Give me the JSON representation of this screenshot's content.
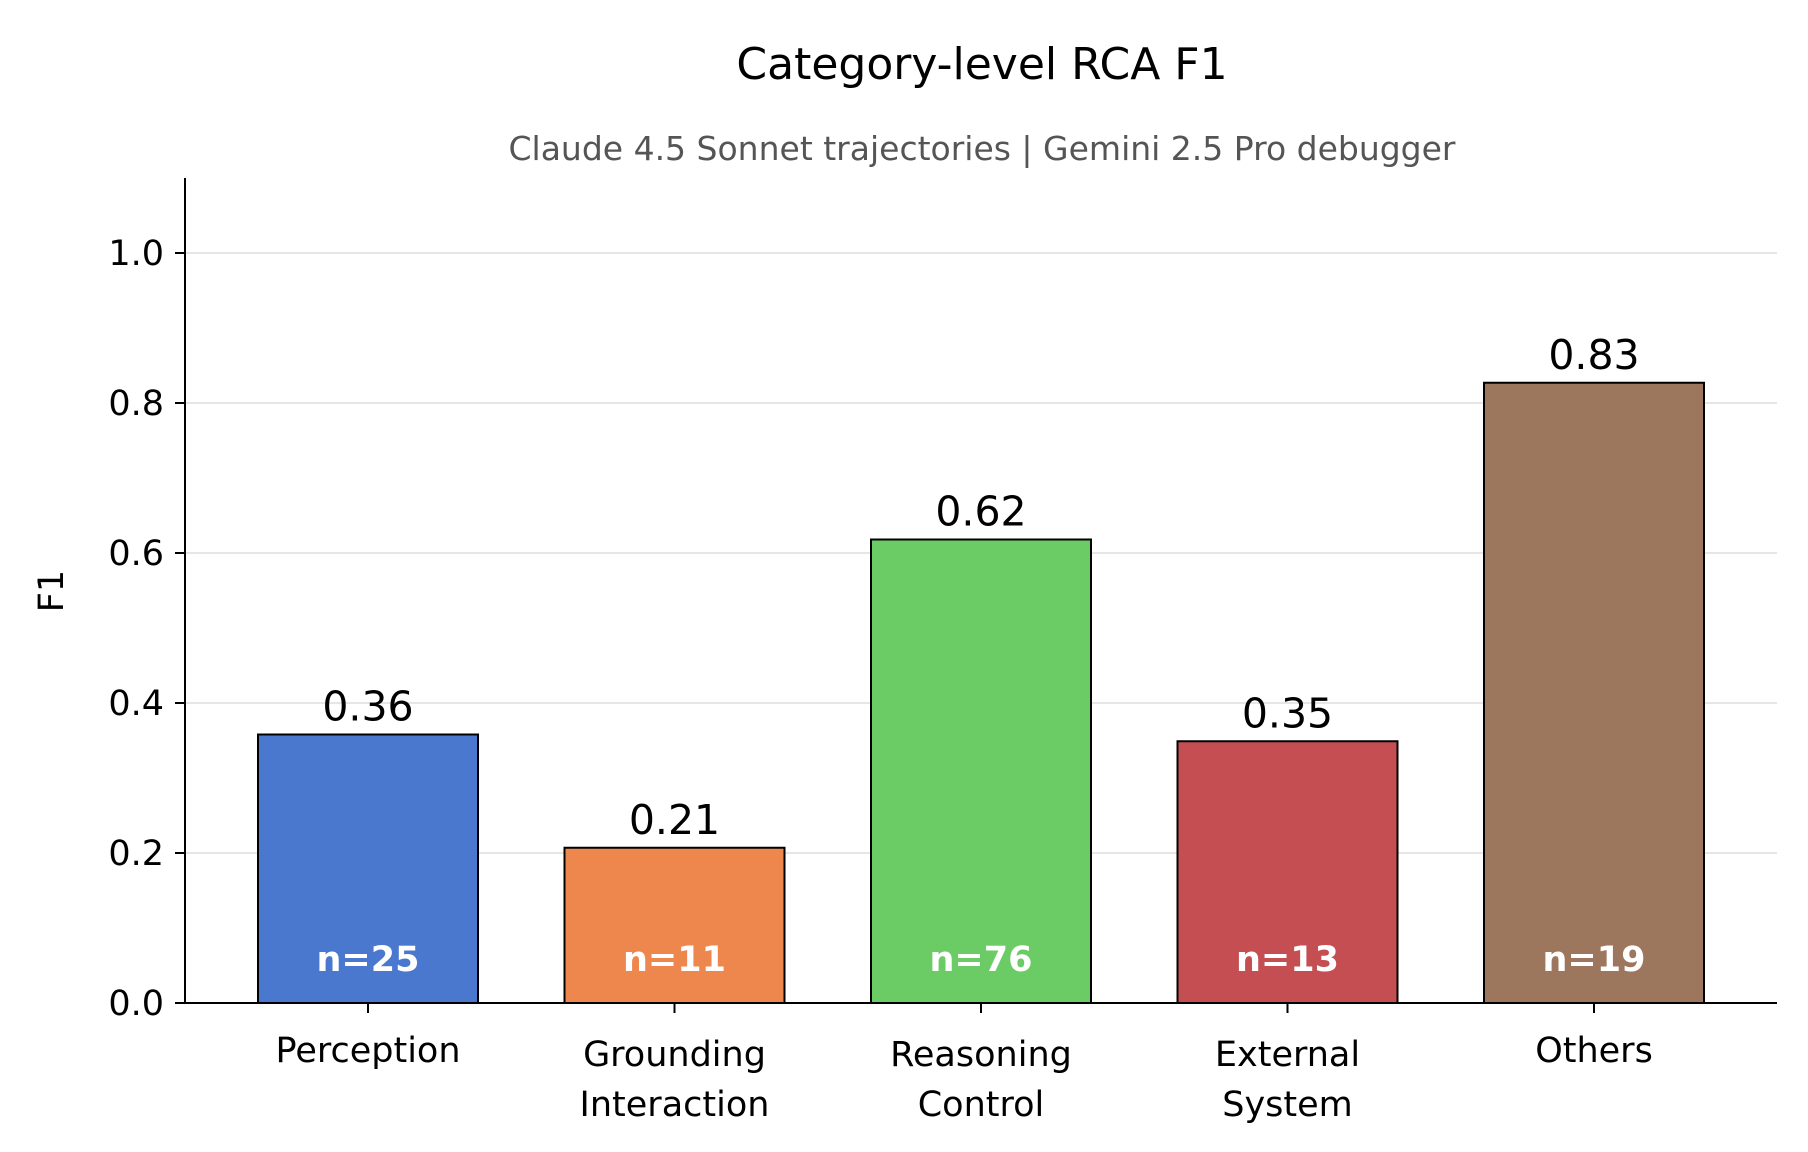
{
  "chart_data": {
    "type": "bar",
    "title": "Category-level RCA F1",
    "subtitle": "Claude 4.5 Sonnet trajectories | Gemini 2.5 Pro debugger",
    "xlabel": "",
    "ylabel": "F1",
    "ylim": [
      0,
      1.1
    ],
    "yticks": [
      "0.0",
      "0.2",
      "0.4",
      "0.6",
      "0.8",
      "1.0"
    ],
    "grid": "horizontal",
    "categories": [
      [
        "Perception"
      ],
      [
        "Grounding",
        "Interaction"
      ],
      [
        "Reasoning",
        "Control"
      ],
      [
        "External",
        "System"
      ],
      [
        "Others"
      ]
    ],
    "values": [
      0.358,
      0.207,
      0.618,
      0.349,
      0.827
    ],
    "value_labels": [
      "0.36",
      "0.21",
      "0.62",
      "0.35",
      "0.83"
    ],
    "counts": [
      "n=25",
      "n=11",
      "n=76",
      "n=13",
      "n=19"
    ],
    "colors": [
      "#4878d0",
      "#ee854a",
      "#6acc64",
      "#d65f5f",
      "#956cb4"
    ],
    "bar_colors": [
      "#4a78cf",
      "#ee874e",
      "#6bcc65",
      "#c44e52",
      "#9c775e"
    ]
  }
}
